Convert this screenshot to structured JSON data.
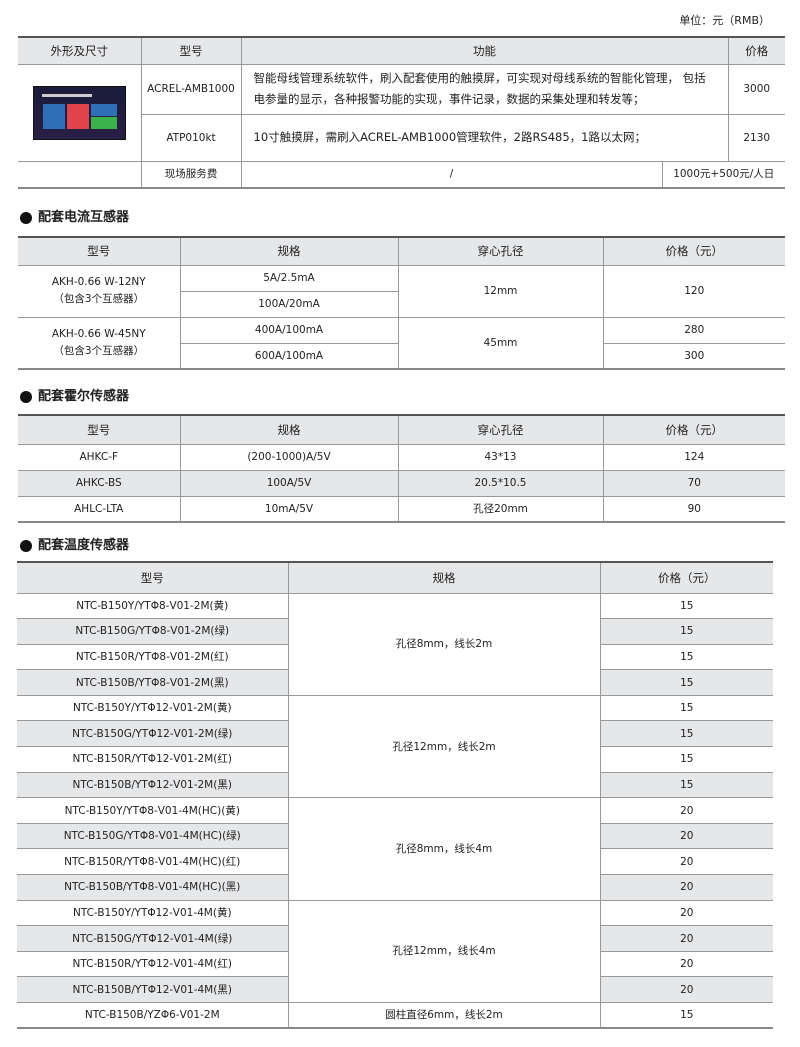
{
  "unit_label": "单位：元（RMB）",
  "main_table": {
    "headers": [
      "外形及尺寸",
      "型号",
      "功能",
      "价格"
    ],
    "rows": [
      {
        "model": "ACREL-AMB1000",
        "function": "智能母线管理系统软件，刷入配套使用的触摸屏，可实现对母线系统的智能化管理， 包括电参量的显示，各种报警功能的实现，事件记录，数据的采集处理和转发等；",
        "price": "3000"
      },
      {
        "model": "ATP010kt",
        "function": "10寸触摸屏，需刷入ACREL-AMB1000管理软件，2路RS485，1路以太网；",
        "price": "2130"
      }
    ],
    "service": {
      "label": "现场服务费",
      "function": "/",
      "price": "1000元+500元/人日"
    },
    "image": "touchscreen-photo"
  },
  "ct_section": {
    "title": "配套电流互感器",
    "headers": [
      "型号",
      "规格",
      "穿心孔径",
      "价格（元）"
    ],
    "groups": [
      {
        "model": "AKH-0.66 W-12NY",
        "note": "（包含3个互感器）",
        "specs": [
          "5A/2.5mA",
          "100A/20mA"
        ],
        "aperture": "12mm",
        "prices": [
          "120"
        ]
      },
      {
        "model": "AKH-0.66 W-45NY",
        "note": "（包含3个互感器）",
        "specs": [
          "400A/100mA",
          "600A/100mA"
        ],
        "aperture": "45mm",
        "prices": [
          "280",
          "300"
        ]
      }
    ]
  },
  "hall_section": {
    "title": "配套霍尔传感器",
    "headers": [
      "型号",
      "规格",
      "穿心孔径",
      "价格（元）"
    ],
    "rows": [
      [
        "AHKC-F",
        "(200-1000)A/5V",
        "43*13",
        "124"
      ],
      [
        "AHKC-BS",
        "100A/5V",
        "20.5*10.5",
        "70"
      ],
      [
        "AHLC-LTA",
        "10mA/5V",
        "孔径20mm",
        "90"
      ]
    ]
  },
  "temp_section": {
    "title": "配套温度传感器",
    "headers": [
      "型号",
      "规格",
      "价格（元）"
    ],
    "groups": [
      {
        "spec": "孔径8mm，线长2m",
        "rows": [
          [
            "NTC-B150Y/YTΦ8-V01-2M(黄)",
            "15"
          ],
          [
            "NTC-B150G/YTΦ8-V01-2M(绿)",
            "15"
          ],
          [
            "NTC-B150R/YTΦ8-V01-2M(红)",
            "15"
          ],
          [
            "NTC-B150B/YTΦ8-V01-2M(黑)",
            "15"
          ]
        ]
      },
      {
        "spec": "孔径12mm，线长2m",
        "rows": [
          [
            "NTC-B150Y/YTΦ12-V01-2M(黄)",
            "15"
          ],
          [
            "NTC-B150G/YTΦ12-V01-2M(绿)",
            "15"
          ],
          [
            "NTC-B150R/YTΦ12-V01-2M(红)",
            "15"
          ],
          [
            "NTC-B150B/YTΦ12-V01-2M(黑)",
            "15"
          ]
        ]
      },
      {
        "spec": "孔径8mm，线长4m",
        "rows": [
          [
            "NTC-B150Y/YTΦ8-V01-4M(HC)(黄)",
            "20"
          ],
          [
            "NTC-B150G/YTΦ8-V01-4M(HC)(绿)",
            "20"
          ],
          [
            "NTC-B150R/YTΦ8-V01-4M(HC)(红)",
            "20"
          ],
          [
            "NTC-B150B/YTΦ8-V01-4M(HC)(黑)",
            "20"
          ]
        ]
      },
      {
        "spec": "孔径12mm，线长4m",
        "rows": [
          [
            "NTC-B150Y/YTΦ12-V01-4M(黄)",
            "20"
          ],
          [
            "NTC-B150G/YTΦ12-V01-4M(绿)",
            "20"
          ],
          [
            "NTC-B150R/YTΦ12-V01-4M(红)",
            "20"
          ],
          [
            "NTC-B150B/YTΦ12-V01-4M(黑)",
            "20"
          ]
        ]
      },
      {
        "spec": "圆柱直径6mm，线长2m",
        "rows": [
          [
            "NTC-B150B/YZΦ6-V01-2M",
            "15"
          ]
        ]
      }
    ]
  }
}
